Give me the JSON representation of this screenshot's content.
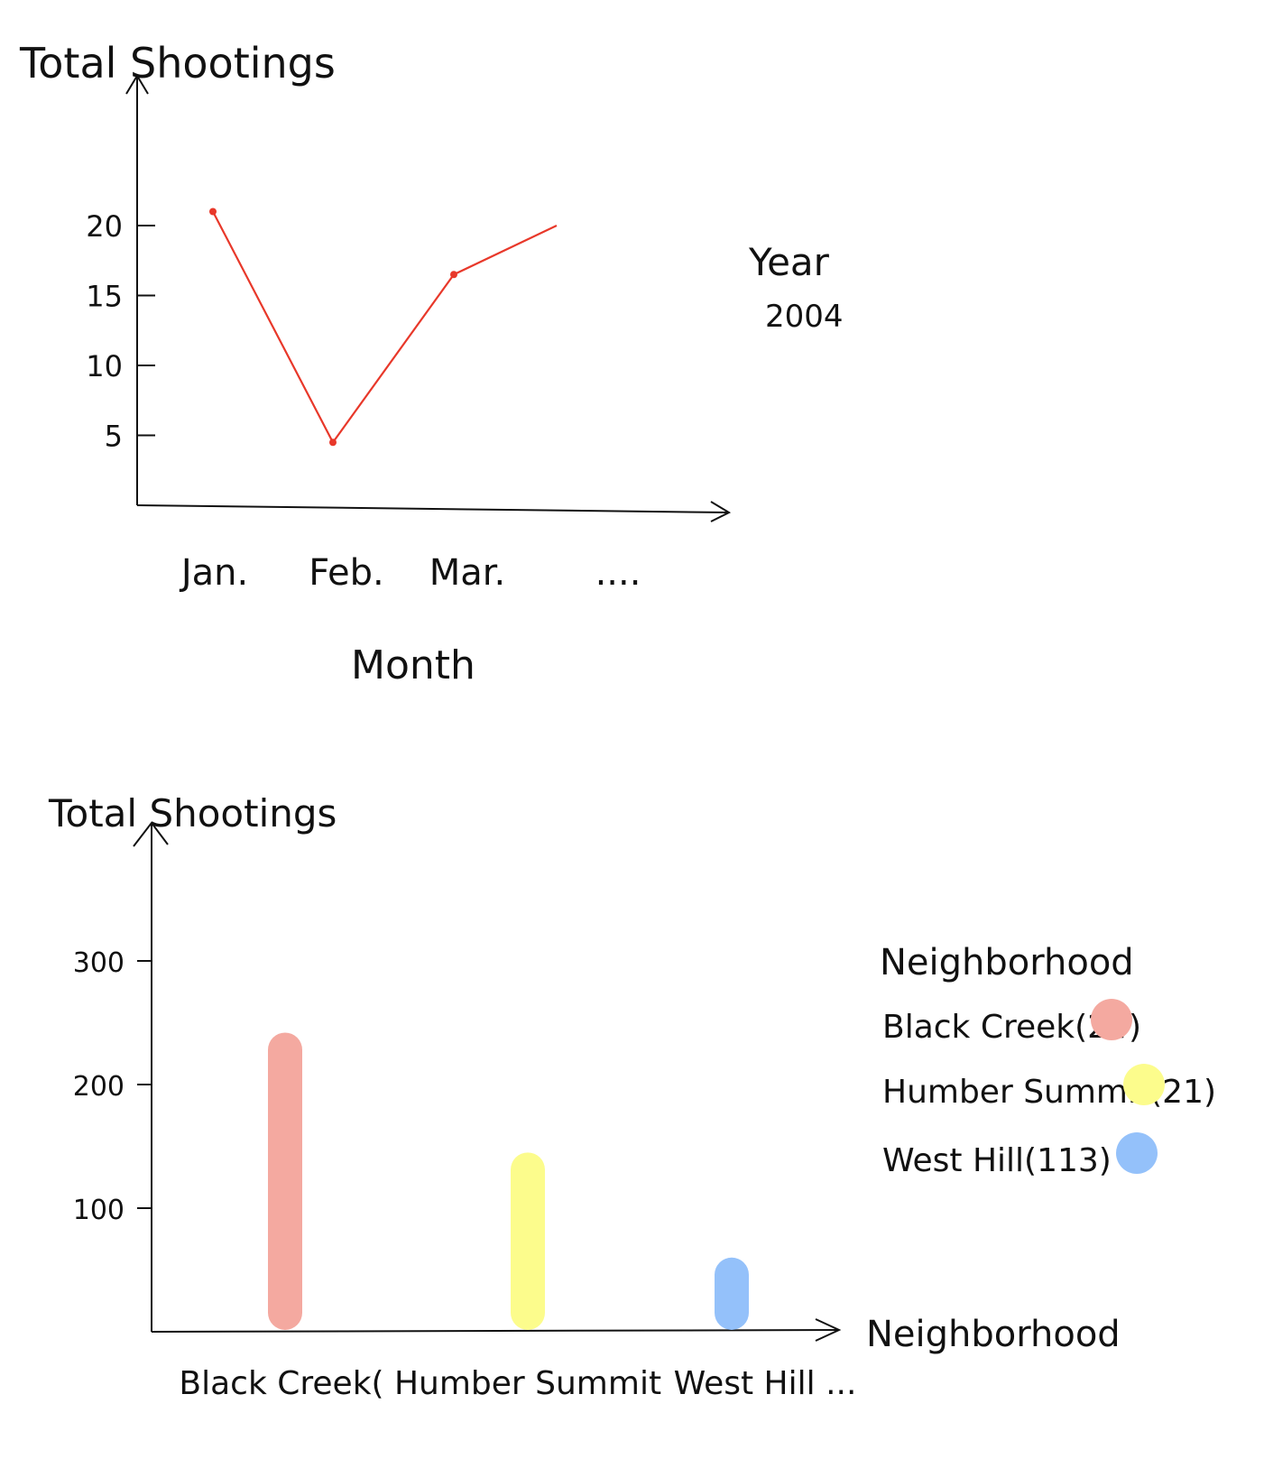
{
  "chart_data": [
    {
      "type": "line",
      "ylabel": "Total Shootings",
      "xlabel": "Month",
      "categories": [
        "Jan.",
        "Feb.",
        "Mar.",
        "...."
      ],
      "yticks": [
        "20",
        "15",
        "10",
        "5"
      ],
      "series": [
        {
          "values": [
            21,
            4.5,
            16.5,
            20
          ],
          "color": "#e8382a"
        }
      ],
      "annotation": {
        "label": "Year",
        "value": "2004"
      },
      "ylim": [
        0,
        30
      ]
    },
    {
      "type": "bar",
      "ylabel": "Total Shootings",
      "xlabel": "Neighborhood",
      "categories": [
        "Black Creek(",
        "Humber Summit",
        "West Hill ..."
      ],
      "values": [
        242,
        145,
        60
      ],
      "colors": [
        "#f4a9a0",
        "#fcfc8c",
        "#94c1fa"
      ],
      "yticks": [
        "300",
        "200",
        "100"
      ],
      "ylim": [
        0,
        380
      ],
      "legend": {
        "title": "Neighborhood",
        "items": [
          {
            "label": "Black Creek(24)",
            "color": "#f4a9a0"
          },
          {
            "label": "Humber Summit(21)",
            "color": "#fcfc8c"
          },
          {
            "label": "West Hill(113)",
            "color": "#94c1fa"
          }
        ]
      }
    }
  ]
}
